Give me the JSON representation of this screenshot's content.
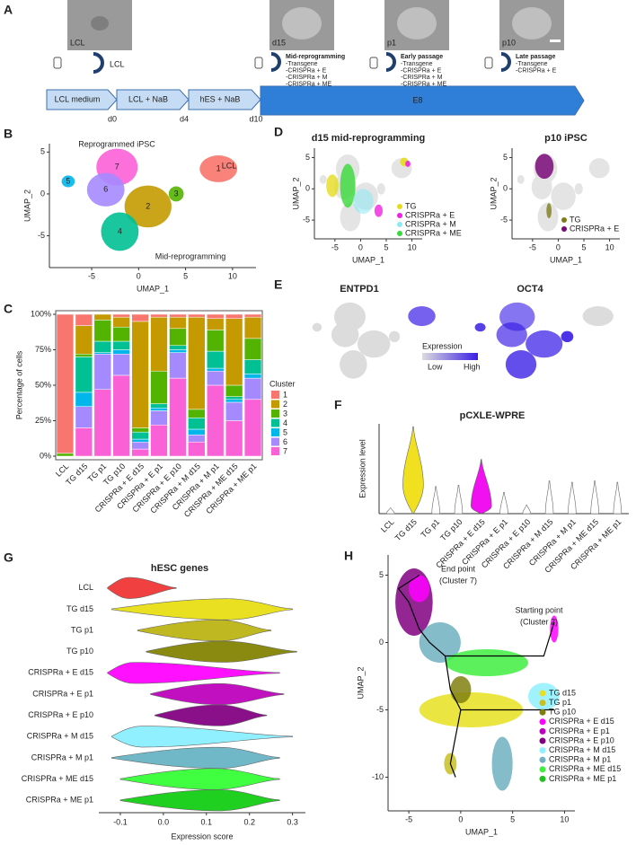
{
  "panel_labels": [
    "A",
    "B",
    "C",
    "D",
    "E",
    "F",
    "G",
    "H"
  ],
  "panel_a": {
    "images": [
      "LCL",
      "d15",
      "p1",
      "p10"
    ],
    "medium_icon_label": "LCL",
    "samples": [
      {
        "title": "Mid-reprogramming",
        "items": [
          "-Transgene",
          "-CRISPRa + E",
          "-CRISPRa + M",
          "-CRISPRa + ME"
        ]
      },
      {
        "title": "Early passage",
        "items": [
          "-Transgene",
          "-CRISPRa + E",
          "-CRISPRa + M",
          "-CRISPRa + ME"
        ]
      },
      {
        "title": "Late passage",
        "items": [
          "-Transgene",
          "-CRISPRa + E"
        ]
      }
    ],
    "stages": [
      "LCL medium",
      "LCL + NaB",
      "hES + NaB",
      "E8"
    ],
    "days": [
      "d0",
      "d4",
      "d10"
    ]
  },
  "chart_data": [
    {
      "type": "umap",
      "annotations": [
        "Reprogrammed iPSC",
        "LCL",
        "Mid-reprogramming"
      ],
      "clusters": [
        "1",
        "2",
        "3",
        "4",
        "5",
        "6",
        "7"
      ],
      "cluster_colors": [
        "#F8766D",
        "#C49A00",
        "#53B400",
        "#00C094",
        "#00B6EB",
        "#A58AFF",
        "#FB61D7"
      ],
      "x_label": "UMAP_1",
      "y_label": "UMAP_2",
      "xlim": [
        -9.5,
        12.5
      ],
      "ylim": [
        -8.8,
        6
      ],
      "xticks": [
        -5,
        0,
        5,
        10
      ],
      "yticks": [
        -5,
        0,
        5
      ]
    },
    {
      "type": "stacked_bar",
      "categories": [
        "LCL",
        "TG d15",
        "TG p1",
        "TG p10",
        "CRISPRa + E d15",
        "CRISPRa + E p1",
        "CRISPRa + E p10",
        "CRISPRa + M d15",
        "CRISPRa + M p1",
        "CRISPRa + ME d15",
        "CRISPRa + ME p1"
      ],
      "series": [
        {
          "name": "1",
          "color": "#F8766D",
          "values": [
            98,
            8,
            0,
            2,
            5,
            2,
            2,
            2,
            3,
            3,
            2
          ]
        },
        {
          "name": "2",
          "color": "#C49A00",
          "values": [
            0,
            20,
            4,
            7,
            75,
            38,
            8,
            65,
            8,
            47,
            15
          ]
        },
        {
          "name": "3",
          "color": "#53B400",
          "values": [
            2,
            2,
            15,
            10,
            3,
            23,
            12,
            6,
            15,
            8,
            15
          ]
        },
        {
          "name": "4",
          "color": "#00C094",
          "values": [
            0,
            25,
            8,
            6,
            5,
            3,
            3,
            8,
            12,
            2,
            10
          ]
        },
        {
          "name": "5",
          "color": "#00B6EB",
          "values": [
            0,
            10,
            1,
            3,
            2,
            2,
            2,
            4,
            2,
            2,
            3
          ]
        },
        {
          "name": "6",
          "color": "#A58AFF",
          "values": [
            0,
            15,
            25,
            15,
            5,
            10,
            18,
            5,
            10,
            13,
            15
          ]
        },
        {
          "name": "7",
          "color": "#FB61D7",
          "values": [
            0,
            20,
            47,
            57,
            5,
            22,
            55,
            10,
            50,
            25,
            40
          ]
        }
      ],
      "legend_title": "Cluster",
      "y_label": "Percentage of cells",
      "ylim": [
        0,
        100
      ],
      "yticks": [
        {
          "value": 0,
          "label": "0%"
        },
        {
          "value": 25,
          "label": "25%"
        },
        {
          "value": 50,
          "label": "50%"
        },
        {
          "value": 75,
          "label": "75%"
        },
        {
          "value": 100,
          "label": "100%"
        }
      ]
    },
    {
      "type": "umap",
      "title": "d15 mid-reprogramming",
      "series": [
        {
          "name": "TG",
          "color": "#e6dc1e"
        },
        {
          "name": "CRISPRa + E",
          "color": "#f020e0"
        },
        {
          "name": "CRISPRa + M",
          "color": "#8ceaf4"
        },
        {
          "name": "CRISPRa + ME",
          "color": "#38d838"
        }
      ],
      "x_label": "UMAP_1",
      "y_label": "UMAP_2",
      "xlim": [
        -9,
        12
      ],
      "ylim": [
        -8,
        6.5
      ],
      "xticks": [
        -5,
        0,
        5,
        10
      ],
      "yticks": [
        -5,
        0,
        5
      ]
    },
    {
      "type": "umap",
      "title": "p10 iPSC",
      "series": [
        {
          "name": "TG",
          "color": "#7d7d18"
        },
        {
          "name": "CRISPRa + E",
          "color": "#7a0a7a"
        }
      ],
      "x_label": "UMAP_1",
      "y_label": "UMAP_2",
      "xlim": [
        -9,
        12
      ],
      "ylim": [
        -8,
        6.5
      ],
      "xticks": [
        -5,
        0,
        5,
        10
      ],
      "yticks": [
        -5,
        0,
        5
      ]
    },
    {
      "type": "feature",
      "titles": [
        "ENTPD1",
        "OCT4"
      ],
      "legend_title": "Expression",
      "legend_low": "Low",
      "legend_high": "High",
      "low_color": "#dcdcdc",
      "high_color": "#3a1ee6"
    },
    {
      "type": "violin",
      "orientation": "vertical",
      "title": "pCXLE-WPRE",
      "y_label": "Expression level",
      "categories": [
        "LCL",
        "TG d15",
        "TG p1",
        "TG p10",
        "CRISPRa + E d15",
        "CRISPRa + E p1",
        "CRISPRa + E p10",
        "CRISPRa + M d15",
        "CRISPRa + M p1",
        "CRISPRa + ME d15",
        "CRISPRa + ME p1"
      ],
      "colors": [
        "#ffffff",
        "#f0e020",
        "#ffffff",
        "#ffffff",
        "#f010f0",
        "#ffffff",
        "#ffffff",
        "#ffffff",
        "#ffffff",
        "#ffffff",
        "#ffffff"
      ],
      "min": [
        0,
        0,
        0,
        0,
        0,
        0,
        0,
        0,
        0,
        0,
        0
      ],
      "mode": [
        0,
        2,
        0,
        0,
        0.5,
        0,
        0,
        0,
        0,
        0,
        0
      ],
      "max": [
        0.4,
        6.1,
        1.9,
        2,
        3.8,
        1.5,
        0.6,
        2.3,
        2.2,
        2.3,
        2.2
      ],
      "ylim": [
        0,
        6.3
      ]
    },
    {
      "type": "violin",
      "orientation": "horizontal",
      "title": "hESC genes",
      "x_label": "Expression score",
      "categories": [
        "LCL",
        "TG d15",
        "TG p1",
        "TG p10",
        "CRISPRa + E d15",
        "CRISPRa + E p1",
        "CRISPRa + E p10",
        "CRISPRa + M d15",
        "CRISPRa + M p1",
        "CRISPRa + ME d15",
        "CRISPRa + ME p1"
      ],
      "colors": [
        "#f04040",
        "#e8e020",
        "#c0b820",
        "#8a8a10",
        "#ff10ff",
        "#c010c0",
        "#8a108a",
        "#90f0ff",
        "#70b8c8",
        "#40ff40",
        "#20d020"
      ],
      "min": [
        -0.13,
        -0.12,
        -0.06,
        -0.04,
        -0.13,
        -0.03,
        -0.02,
        -0.12,
        -0.12,
        -0.1,
        -0.1
      ],
      "mode": [
        -0.08,
        0.15,
        0.13,
        0.14,
        -0.07,
        0.13,
        0.13,
        -0.05,
        0.13,
        0.12,
        0.13
      ],
      "max": [
        0.03,
        0.3,
        0.25,
        0.31,
        0.27,
        0.28,
        0.24,
        0.3,
        0.27,
        0.27,
        0.27
      ],
      "xlim": [
        -0.15,
        0.33
      ],
      "xticks": [
        -0.1,
        {
          "value": 0,
          "label": "0.0"
        },
        0.1,
        0.2,
        0.3
      ]
    },
    {
      "type": "umap",
      "annotations": [
        "End point",
        "(Cluster 7)",
        "Starting point",
        "(Cluster 2)"
      ],
      "series": [
        {
          "name": "TG d15",
          "color": "#e8e020"
        },
        {
          "name": "TG p1",
          "color": "#c8c020"
        },
        {
          "name": "TG p10",
          "color": "#808010"
        },
        {
          "name": "CRISPRa + E d15",
          "color": "#ff00ff"
        },
        {
          "name": "CRISPRa + E p1",
          "color": "#c000c0"
        },
        {
          "name": "CRISPRa + E p10",
          "color": "#800080"
        },
        {
          "name": "CRISPRa + M d15",
          "color": "#90f0ff"
        },
        {
          "name": "CRISPRa + M p1",
          "color": "#70b0c0"
        },
        {
          "name": "CRISPRa + ME d15",
          "color": "#40ee40"
        },
        {
          "name": "CRISPRa + ME p1",
          "color": "#20c020"
        }
      ],
      "x_label": "UMAP_1",
      "y_label": "UMAP_2",
      "xlim": [
        -7,
        11
      ],
      "ylim": [
        -12.5,
        6.5
      ],
      "xticks": [
        -5,
        0,
        5,
        10
      ],
      "yticks": [
        -10,
        -5,
        0,
        5
      ]
    }
  ]
}
